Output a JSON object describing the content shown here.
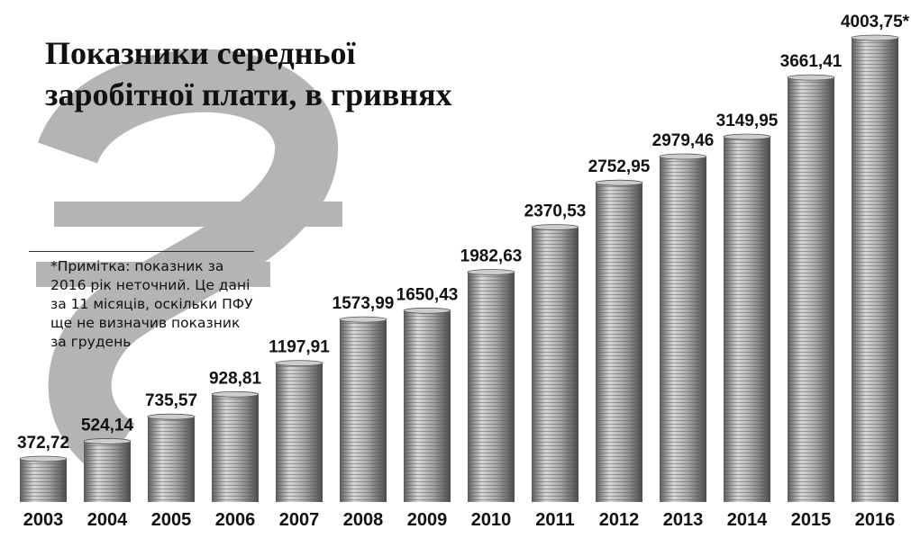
{
  "chart_data": {
    "type": "bar",
    "title": [
      "Показники середньої",
      "заробітної плати, в гривнях"
    ],
    "note": "*Примітка: показник за 2016 рік неточний. Це дані за 11 місяців, оскільки ПФУ ще не визначив показник за грудень",
    "categories": [
      "2003",
      "2004",
      "2005",
      "2006",
      "2007",
      "2008",
      "2009",
      "2010",
      "2011",
      "2012",
      "2013",
      "2014",
      "2015",
      "2016"
    ],
    "values": [
      372.72,
      524.14,
      735.57,
      928.81,
      1197.91,
      1573.99,
      1650.43,
      1982.63,
      2370.53,
      2752.95,
      2979.46,
      3149.95,
      3661.41,
      4003.75
    ],
    "value_labels": [
      "372,72",
      "524,14",
      "735,57",
      "928,81",
      "1197,91",
      "1573,99",
      "1650,43",
      "1982,63",
      "2370,53",
      "2752,95",
      "2979,46",
      "3149,95",
      "3661,41",
      "4003,75*"
    ],
    "color": "#9a9a9a"
  }
}
